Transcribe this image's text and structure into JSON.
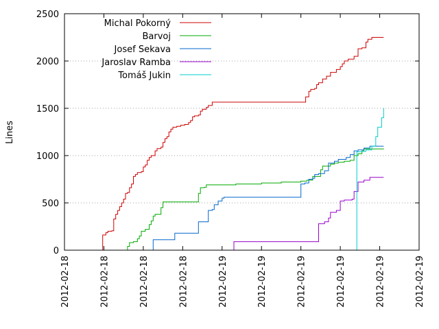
{
  "chart_data": {
    "type": "line",
    "title": "",
    "xlabel": "",
    "ylabel": "Lines",
    "ylim": [
      0,
      2500
    ],
    "yticks": [
      0,
      500,
      1000,
      1500,
      2000,
      2500
    ],
    "ygrid": true,
    "xlim": [
      0,
      9
    ],
    "xticks": [
      0,
      1,
      2,
      3,
      4,
      5,
      6,
      7,
      8,
      9
    ],
    "xtick_labels": [
      "2012-02-18",
      "2012-02-18",
      "2012-02-18",
      "2012-02-18",
      "2012-02-19",
      "2012-02-19",
      "2012-02-19",
      "2012-02-19",
      "2012-02-19",
      "2012-02-19"
    ],
    "legend_position": "top-left",
    "series": [
      {
        "name": "Michal Pokorný",
        "color": "#cc0000",
        "points": [
          [
            0.9,
            0
          ],
          [
            0.95,
            0
          ],
          [
            0.97,
            160
          ],
          [
            1.05,
            185
          ],
          [
            1.1,
            200
          ],
          [
            1.2,
            205
          ],
          [
            1.25,
            330
          ],
          [
            1.3,
            380
          ],
          [
            1.35,
            420
          ],
          [
            1.4,
            460
          ],
          [
            1.45,
            500
          ],
          [
            1.5,
            540
          ],
          [
            1.55,
            600
          ],
          [
            1.6,
            610
          ],
          [
            1.65,
            660
          ],
          [
            1.7,
            700
          ],
          [
            1.75,
            780
          ],
          [
            1.8,
            800
          ],
          [
            1.85,
            820
          ],
          [
            1.95,
            830
          ],
          [
            2.0,
            880
          ],
          [
            2.05,
            900
          ],
          [
            2.1,
            950
          ],
          [
            2.15,
            980
          ],
          [
            2.2,
            1000
          ],
          [
            2.3,
            1050
          ],
          [
            2.35,
            1075
          ],
          [
            2.45,
            1090
          ],
          [
            2.5,
            1140
          ],
          [
            2.55,
            1180
          ],
          [
            2.6,
            1200
          ],
          [
            2.65,
            1250
          ],
          [
            2.7,
            1280
          ],
          [
            2.75,
            1300
          ],
          [
            2.85,
            1310
          ],
          [
            2.95,
            1320
          ],
          [
            3.05,
            1330
          ],
          [
            3.15,
            1350
          ],
          [
            3.2,
            1370
          ],
          [
            3.25,
            1410
          ],
          [
            3.3,
            1420
          ],
          [
            3.4,
            1430
          ],
          [
            3.45,
            1470
          ],
          [
            3.5,
            1490
          ],
          [
            3.6,
            1510
          ],
          [
            3.65,
            1530
          ],
          [
            3.75,
            1565
          ],
          [
            6.1,
            1565
          ],
          [
            6.12,
            1620
          ],
          [
            6.2,
            1680
          ],
          [
            6.25,
            1700
          ],
          [
            6.35,
            1710
          ],
          [
            6.4,
            1750
          ],
          [
            6.45,
            1770
          ],
          [
            6.55,
            1810
          ],
          [
            6.65,
            1840
          ],
          [
            6.75,
            1880
          ],
          [
            6.9,
            1910
          ],
          [
            7.0,
            1940
          ],
          [
            7.05,
            1970
          ],
          [
            7.1,
            2000
          ],
          [
            7.2,
            2020
          ],
          [
            7.35,
            2050
          ],
          [
            7.45,
            2130
          ],
          [
            7.55,
            2140
          ],
          [
            7.65,
            2200
          ],
          [
            7.7,
            2230
          ],
          [
            7.8,
            2250
          ],
          [
            8.1,
            2250
          ]
        ]
      },
      {
        "name": "Barvoj",
        "color": "#00aa00",
        "points": [
          [
            1.55,
            0
          ],
          [
            1.6,
            40
          ],
          [
            1.65,
            80
          ],
          [
            1.75,
            90
          ],
          [
            1.85,
            120
          ],
          [
            1.9,
            150
          ],
          [
            1.95,
            200
          ],
          [
            2.05,
            220
          ],
          [
            2.15,
            270
          ],
          [
            2.2,
            310
          ],
          [
            2.25,
            360
          ],
          [
            2.3,
            380
          ],
          [
            2.45,
            450
          ],
          [
            2.5,
            510
          ],
          [
            3.35,
            510
          ],
          [
            3.4,
            600
          ],
          [
            3.45,
            660
          ],
          [
            3.55,
            665
          ],
          [
            3.6,
            690
          ],
          [
            4.35,
            700
          ],
          [
            5.0,
            710
          ],
          [
            5.5,
            720
          ],
          [
            6.0,
            730
          ],
          [
            6.15,
            740
          ],
          [
            6.3,
            780
          ],
          [
            6.5,
            850
          ],
          [
            6.55,
            890
          ],
          [
            6.75,
            910
          ],
          [
            6.85,
            920
          ],
          [
            6.95,
            930
          ],
          [
            7.1,
            940
          ],
          [
            7.25,
            950
          ],
          [
            7.35,
            1000
          ],
          [
            7.45,
            1020
          ],
          [
            7.55,
            1050
          ],
          [
            7.6,
            1070
          ],
          [
            8.1,
            1075
          ]
        ]
      },
      {
        "name": "Josef Sekava",
        "color": "#0066cc",
        "points": [
          [
            1.95,
            0
          ],
          [
            2.2,
            0
          ],
          [
            2.25,
            110
          ],
          [
            2.75,
            110
          ],
          [
            2.8,
            180
          ],
          [
            3.35,
            180
          ],
          [
            3.4,
            300
          ],
          [
            3.6,
            300
          ],
          [
            3.65,
            420
          ],
          [
            3.75,
            430
          ],
          [
            3.8,
            480
          ],
          [
            3.9,
            520
          ],
          [
            4.0,
            550
          ],
          [
            4.05,
            560
          ],
          [
            5.95,
            560
          ],
          [
            6.0,
            700
          ],
          [
            6.1,
            710
          ],
          [
            6.2,
            750
          ],
          [
            6.3,
            760
          ],
          [
            6.35,
            800
          ],
          [
            6.45,
            810
          ],
          [
            6.6,
            840
          ],
          [
            6.7,
            920
          ],
          [
            6.85,
            940
          ],
          [
            6.95,
            960
          ],
          [
            7.15,
            980
          ],
          [
            7.25,
            1010
          ],
          [
            7.35,
            1050
          ],
          [
            7.45,
            1060
          ],
          [
            7.6,
            1080
          ],
          [
            7.75,
            1100
          ],
          [
            8.1,
            1100
          ]
        ]
      },
      {
        "name": "Jaroslav Ramba",
        "color": "#9900cc",
        "points": [
          [
            4.25,
            0
          ],
          [
            4.3,
            90
          ],
          [
            6.35,
            90
          ],
          [
            6.45,
            280
          ],
          [
            6.6,
            300
          ],
          [
            6.7,
            340
          ],
          [
            6.75,
            400
          ],
          [
            6.9,
            420
          ],
          [
            7.0,
            520
          ],
          [
            7.1,
            530
          ],
          [
            7.3,
            540
          ],
          [
            7.35,
            620
          ],
          [
            7.45,
            720
          ],
          [
            7.6,
            740
          ],
          [
            7.75,
            770
          ],
          [
            8.1,
            770
          ]
        ]
      },
      {
        "name": "Tomáš Jukin",
        "color": "#00cccc",
        "points": [
          [
            7.4,
            0
          ],
          [
            7.42,
            1040
          ],
          [
            7.55,
            1045
          ],
          [
            7.65,
            1060
          ],
          [
            7.8,
            1100
          ],
          [
            7.9,
            1200
          ],
          [
            7.95,
            1300
          ],
          [
            8.05,
            1400
          ],
          [
            8.1,
            1500
          ]
        ]
      }
    ]
  }
}
